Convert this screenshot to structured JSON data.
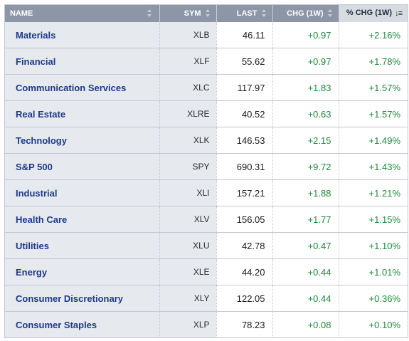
{
  "table": {
    "headers": {
      "name": "NAME",
      "sym": "SYM",
      "last": "LAST",
      "chg": "CHG (1W)",
      "pct": "% CHG (1W)"
    },
    "rows": [
      {
        "name": "Materials",
        "sym": "XLB",
        "last": "46.11",
        "chg": "+0.97",
        "pct": "+2.16%"
      },
      {
        "name": "Financial",
        "sym": "XLF",
        "last": "55.62",
        "chg": "+0.97",
        "pct": "+1.78%"
      },
      {
        "name": "Communication Services",
        "sym": "XLC",
        "last": "117.97",
        "chg": "+1.83",
        "pct": "+1.57%"
      },
      {
        "name": "Real Estate",
        "sym": "XLRE",
        "last": "40.52",
        "chg": "+0.63",
        "pct": "+1.57%"
      },
      {
        "name": "Technology",
        "sym": "XLK",
        "last": "146.53",
        "chg": "+2.15",
        "pct": "+1.49%"
      },
      {
        "name": "S&P 500",
        "sym": "SPY",
        "last": "690.31",
        "chg": "+9.72",
        "pct": "+1.43%"
      },
      {
        "name": "Industrial",
        "sym": "XLI",
        "last": "157.21",
        "chg": "+1.88",
        "pct": "+1.21%"
      },
      {
        "name": "Health Care",
        "sym": "XLV",
        "last": "156.05",
        "chg": "+1.77",
        "pct": "+1.15%"
      },
      {
        "name": "Utilities",
        "sym": "XLU",
        "last": "42.78",
        "chg": "+0.47",
        "pct": "+1.10%"
      },
      {
        "name": "Energy",
        "sym": "XLE",
        "last": "44.20",
        "chg": "+0.44",
        "pct": "+1.01%"
      },
      {
        "name": "Consumer Discretionary",
        "sym": "XLY",
        "last": "122.05",
        "chg": "+0.44",
        "pct": "+0.36%"
      },
      {
        "name": "Consumer Staples",
        "sym": "XLP",
        "last": "78.23",
        "chg": "+0.08",
        "pct": "+0.10%"
      }
    ]
  },
  "icons": {
    "sort_both": "sort-both-icon",
    "sort_desc": "sort-descending-icon"
  },
  "colors": {
    "header_bg": "#8d96a6",
    "active_header_bg": "#d7dbe2",
    "name_text": "#1d3a8a",
    "positive": "#1e8a3c",
    "label_column_bg": "#e6e9ee"
  }
}
